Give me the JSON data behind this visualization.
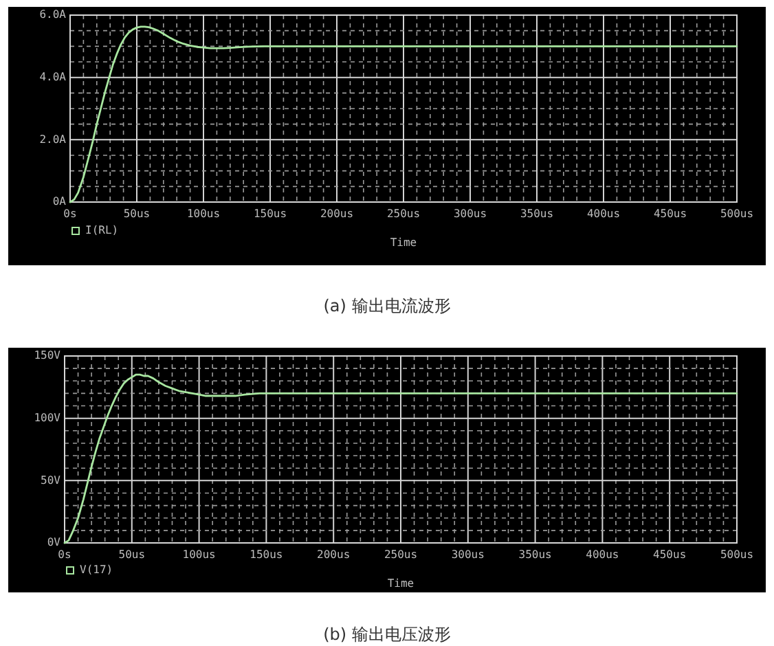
{
  "chart_data": [
    {
      "type": "line",
      "title": "(a) 输出电流波形",
      "xlabel": "Time",
      "legend": "bottom left",
      "grid": true,
      "xlim": [
        0,
        500
      ],
      "ylim": [
        0,
        6
      ],
      "xticks": [
        {
          "value": 0,
          "label": "0s"
        },
        {
          "value": 10,
          "label": null
        },
        {
          "value": 20,
          "label": null
        },
        {
          "value": 30,
          "label": null
        },
        {
          "value": 40,
          "label": null
        },
        {
          "value": 50,
          "label": "50us"
        },
        {
          "value": 60,
          "label": null
        },
        {
          "value": 70,
          "label": null
        },
        {
          "value": 80,
          "label": null
        },
        {
          "value": 90,
          "label": null
        },
        {
          "value": 100,
          "label": "100us"
        },
        {
          "value": 110,
          "label": null
        },
        {
          "value": 120,
          "label": null
        },
        {
          "value": 130,
          "label": null
        },
        {
          "value": 140,
          "label": null
        },
        {
          "value": 150,
          "label": "150us"
        },
        {
          "value": 160,
          "label": null
        },
        {
          "value": 170,
          "label": null
        },
        {
          "value": 180,
          "label": null
        },
        {
          "value": 190,
          "label": null
        },
        {
          "value": 200,
          "label": "200us"
        },
        {
          "value": 210,
          "label": null
        },
        {
          "value": 220,
          "label": null
        },
        {
          "value": 230,
          "label": null
        },
        {
          "value": 240,
          "label": null
        },
        {
          "value": 250,
          "label": "250us"
        },
        {
          "value": 260,
          "label": null
        },
        {
          "value": 270,
          "label": null
        },
        {
          "value": 280,
          "label": null
        },
        {
          "value": 290,
          "label": null
        },
        {
          "value": 300,
          "label": "300us"
        },
        {
          "value": 310,
          "label": null
        },
        {
          "value": 320,
          "label": null
        },
        {
          "value": 330,
          "label": null
        },
        {
          "value": 340,
          "label": null
        },
        {
          "value": 350,
          "label": "350us"
        },
        {
          "value": 360,
          "label": null
        },
        {
          "value": 370,
          "label": null
        },
        {
          "value": 380,
          "label": null
        },
        {
          "value": 390,
          "label": null
        },
        {
          "value": 400,
          "label": "400us"
        },
        {
          "value": 410,
          "label": null
        },
        {
          "value": 420,
          "label": null
        },
        {
          "value": 430,
          "label": null
        },
        {
          "value": 440,
          "label": null
        },
        {
          "value": 450,
          "label": "450us"
        },
        {
          "value": 460,
          "label": null
        },
        {
          "value": 470,
          "label": null
        },
        {
          "value": 480,
          "label": null
        },
        {
          "value": 490,
          "label": null
        },
        {
          "value": 500,
          "label": "500us"
        }
      ],
      "yticks": [
        {
          "value": 0,
          "label": "0A"
        },
        {
          "value": 0.5,
          "label": null
        },
        {
          "value": 1,
          "label": null
        },
        {
          "value": 1.5,
          "label": null
        },
        {
          "value": 2,
          "label": "2.0A"
        },
        {
          "value": 2.5,
          "label": null
        },
        {
          "value": 3,
          "label": null
        },
        {
          "value": 3.5,
          "label": null
        },
        {
          "value": 4,
          "label": "4.0A"
        },
        {
          "value": 4.5,
          "label": null
        },
        {
          "value": 5,
          "label": null
        },
        {
          "value": 5.5,
          "label": null
        },
        {
          "value": 6,
          "label": "6.0A"
        }
      ],
      "x": [
        0,
        3,
        6,
        10,
        14,
        17,
        20,
        23,
        26,
        29,
        32,
        35,
        38,
        41,
        44,
        47,
        50,
        53,
        56,
        59,
        62,
        66,
        70,
        75,
        80,
        85,
        90,
        95,
        100,
        105,
        110,
        115,
        120,
        127,
        134,
        145,
        160,
        200,
        250,
        300,
        350,
        400,
        450,
        500
      ],
      "series": [
        {
          "name": "I(RL)",
          "color": "#a8e6a0",
          "values": [
            0,
            0.08,
            0.3,
            0.8,
            1.45,
            1.95,
            2.5,
            3.0,
            3.5,
            3.95,
            4.4,
            4.75,
            5.05,
            5.28,
            5.44,
            5.54,
            5.6,
            5.63,
            5.63,
            5.61,
            5.57,
            5.5,
            5.4,
            5.27,
            5.16,
            5.08,
            5.02,
            4.98,
            4.96,
            4.94,
            4.94,
            4.94,
            4.95,
            4.97,
            4.99,
            5.0,
            5.0,
            5.0,
            5.0,
            5.0,
            5.0,
            5.0,
            5.0,
            5.0
          ]
        }
      ]
    },
    {
      "type": "line",
      "title": "(b) 输出电压波形",
      "xlabel": "Time",
      "legend": "bottom left",
      "grid": true,
      "xlim": [
        0,
        500
      ],
      "ylim": [
        0,
        150
      ],
      "xticks": [
        {
          "value": 0,
          "label": "0s"
        },
        {
          "value": 10,
          "label": null
        },
        {
          "value": 20,
          "label": null
        },
        {
          "value": 30,
          "label": null
        },
        {
          "value": 40,
          "label": null
        },
        {
          "value": 50,
          "label": "50us"
        },
        {
          "value": 60,
          "label": null
        },
        {
          "value": 70,
          "label": null
        },
        {
          "value": 80,
          "label": null
        },
        {
          "value": 90,
          "label": null
        },
        {
          "value": 100,
          "label": "100us"
        },
        {
          "value": 110,
          "label": null
        },
        {
          "value": 120,
          "label": null
        },
        {
          "value": 130,
          "label": null
        },
        {
          "value": 140,
          "label": null
        },
        {
          "value": 150,
          "label": "150us"
        },
        {
          "value": 160,
          "label": null
        },
        {
          "value": 170,
          "label": null
        },
        {
          "value": 180,
          "label": null
        },
        {
          "value": 190,
          "label": null
        },
        {
          "value": 200,
          "label": "200us"
        },
        {
          "value": 210,
          "label": null
        },
        {
          "value": 220,
          "label": null
        },
        {
          "value": 230,
          "label": null
        },
        {
          "value": 240,
          "label": null
        },
        {
          "value": 250,
          "label": "250us"
        },
        {
          "value": 260,
          "label": null
        },
        {
          "value": 270,
          "label": null
        },
        {
          "value": 280,
          "label": null
        },
        {
          "value": 290,
          "label": null
        },
        {
          "value": 300,
          "label": "300us"
        },
        {
          "value": 310,
          "label": null
        },
        {
          "value": 320,
          "label": null
        },
        {
          "value": 330,
          "label": null
        },
        {
          "value": 340,
          "label": null
        },
        {
          "value": 350,
          "label": "350us"
        },
        {
          "value": 360,
          "label": null
        },
        {
          "value": 370,
          "label": null
        },
        {
          "value": 380,
          "label": null
        },
        {
          "value": 390,
          "label": null
        },
        {
          "value": 400,
          "label": "400us"
        },
        {
          "value": 410,
          "label": null
        },
        {
          "value": 420,
          "label": null
        },
        {
          "value": 430,
          "label": null
        },
        {
          "value": 440,
          "label": null
        },
        {
          "value": 450,
          "label": "450us"
        },
        {
          "value": 460,
          "label": null
        },
        {
          "value": 470,
          "label": null
        },
        {
          "value": 480,
          "label": null
        },
        {
          "value": 490,
          "label": null
        },
        {
          "value": 500,
          "label": "500us"
        }
      ],
      "yticks": [
        {
          "value": 0,
          "label": "0V"
        },
        {
          "value": 10,
          "label": null
        },
        {
          "value": 20,
          "label": null
        },
        {
          "value": 30,
          "label": null
        },
        {
          "value": 40,
          "label": null
        },
        {
          "value": 50,
          "label": "50V"
        },
        {
          "value": 60,
          "label": null
        },
        {
          "value": 70,
          "label": null
        },
        {
          "value": 80,
          "label": null
        },
        {
          "value": 90,
          "label": null
        },
        {
          "value": 100,
          "label": "100V"
        },
        {
          "value": 110,
          "label": null
        },
        {
          "value": 120,
          "label": null
        },
        {
          "value": 130,
          "label": null
        },
        {
          "value": 140,
          "label": null
        },
        {
          "value": 150,
          "label": "150V"
        }
      ],
      "x": [
        0,
        3,
        6,
        10,
        14,
        17,
        20,
        23,
        26,
        29,
        32,
        35,
        38,
        41,
        44,
        47,
        50,
        53,
        56,
        59,
        62,
        66,
        70,
        75,
        80,
        85,
        90,
        95,
        100,
        105,
        110,
        115,
        120,
        127,
        134,
        145,
        160,
        200,
        250,
        300,
        350,
        400,
        450,
        500
      ],
      "series": [
        {
          "name": "V(17)",
          "color": "#a8e6a0",
          "values": [
            0,
            2,
            9,
            20,
            35,
            48,
            61,
            73,
            84,
            93,
            102,
            110,
            117,
            123,
            128,
            131,
            133,
            135,
            135,
            134,
            134,
            132,
            129,
            126,
            124,
            122,
            121,
            120,
            119,
            118,
            118,
            118,
            118,
            118,
            119,
            120,
            120,
            120,
            120,
            120,
            120,
            120,
            120,
            120
          ]
        }
      ]
    }
  ]
}
